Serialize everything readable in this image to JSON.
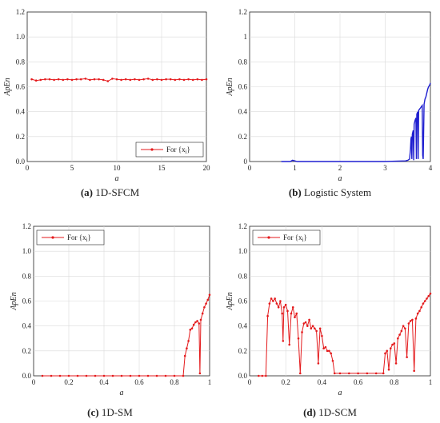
{
  "chart_data": [
    {
      "id": "a",
      "type": "line",
      "caption_label": "(a)",
      "caption_text": "1D-SFCM",
      "xlabel": "a",
      "ylabel": "ApEn",
      "xlim": [
        0,
        20
      ],
      "ylim": [
        0,
        1.2
      ],
      "xticks": [
        "0",
        "5",
        "10",
        "15",
        "20"
      ],
      "yticks": [
        "0.0",
        "0.2",
        "0.4",
        "0.6",
        "0.8",
        "1.0",
        "1.2"
      ],
      "grid": true,
      "color": "#e41a1c",
      "markers": true,
      "legend": {
        "position": "bottom-right",
        "label": "For {x_i}"
      },
      "series": [
        {
          "x": [
            0.5,
            1,
            1.5,
            2,
            2.5,
            3,
            3.5,
            4,
            4.5,
            5,
            5.5,
            6,
            6.5,
            7,
            7.5,
            8,
            8.5,
            9,
            9.5,
            10,
            10.5,
            11,
            11.5,
            12,
            12.5,
            13,
            13.5,
            14,
            14.5,
            15,
            15.5,
            16,
            16.5,
            17,
            17.5,
            18,
            18.5,
            19,
            19.5,
            20
          ],
          "y": [
            0.66,
            0.65,
            0.655,
            0.66,
            0.66,
            0.655,
            0.66,
            0.655,
            0.66,
            0.655,
            0.66,
            0.66,
            0.665,
            0.655,
            0.66,
            0.66,
            0.655,
            0.645,
            0.665,
            0.66,
            0.655,
            0.66,
            0.655,
            0.66,
            0.655,
            0.66,
            0.665,
            0.655,
            0.66,
            0.655,
            0.66,
            0.66,
            0.655,
            0.66,
            0.655,
            0.66,
            0.655,
            0.66,
            0.655,
            0.66
          ]
        }
      ]
    },
    {
      "id": "b",
      "type": "line",
      "caption_label": "(b)",
      "caption_text": "Logistic System",
      "xlabel": "a",
      "ylabel": "ApEn",
      "xlim": [
        0,
        4
      ],
      "ylim": [
        0,
        1.2
      ],
      "xticks": [
        "0",
        "1",
        "2",
        "3",
        "4"
      ],
      "yticks": [
        "0",
        "0.2",
        "0.4",
        "0.6",
        "0.8",
        "1",
        "1.2"
      ],
      "grid": true,
      "color": "#1f1fd0",
      "markers": false,
      "series": [
        {
          "x": [
            0.7,
            0.9,
            0.95,
            1.0,
            1.05,
            1.3,
            2.0,
            3.0,
            3.45,
            3.5,
            3.54,
            3.56,
            3.57,
            3.58,
            3.59,
            3.6,
            3.62,
            3.63,
            3.64,
            3.66,
            3.68,
            3.69,
            3.7,
            3.72,
            3.73,
            3.74,
            3.76,
            3.78,
            3.8,
            3.82,
            3.83,
            3.84,
            3.86,
            3.88,
            3.9,
            3.92,
            3.94,
            3.96,
            3.98,
            4.0
          ],
          "y": [
            0,
            0,
            0.01,
            0.005,
            0,
            0,
            0,
            0,
            0.005,
            0.01,
            0.02,
            0.1,
            0.18,
            0.2,
            0.02,
            0.22,
            0.25,
            0.01,
            0.3,
            0.33,
            0.35,
            0.02,
            0.38,
            0.4,
            0.02,
            0.41,
            0.42,
            0.43,
            0.44,
            0.45,
            0.05,
            0.02,
            0.46,
            0.5,
            0.52,
            0.55,
            0.58,
            0.6,
            0.61,
            0.63
          ]
        }
      ]
    },
    {
      "id": "c",
      "type": "line",
      "caption_label": "(c)",
      "caption_text": "1D-SM",
      "xlabel": "a",
      "ylabel": "ApEn",
      "xlim": [
        0,
        1
      ],
      "ylim": [
        0,
        1.2
      ],
      "xticks": [
        "0",
        "0.2",
        "0.4",
        "0.6",
        "0.8",
        "1"
      ],
      "yticks": [
        "0.0",
        "0.2",
        "0.4",
        "0.6",
        "0.8",
        "1.0",
        "1.2"
      ],
      "grid": true,
      "color": "#e41a1c",
      "markers": true,
      "legend": {
        "position": "top-left",
        "label": "For {x_i}"
      },
      "series": [
        {
          "x": [
            0.05,
            0.1,
            0.15,
            0.2,
            0.25,
            0.3,
            0.35,
            0.4,
            0.45,
            0.5,
            0.55,
            0.6,
            0.65,
            0.7,
            0.75,
            0.8,
            0.85,
            0.86,
            0.87,
            0.88,
            0.89,
            0.9,
            0.91,
            0.92,
            0.93,
            0.94,
            0.945,
            0.95,
            0.96,
            0.97,
            0.98,
            0.99,
            1.0
          ],
          "y": [
            0,
            0,
            0,
            0,
            0,
            0,
            0,
            0,
            0,
            0,
            0,
            0,
            0,
            0,
            0,
            0,
            0,
            0.16,
            0.22,
            0.28,
            0.37,
            0.38,
            0.41,
            0.43,
            0.44,
            0.42,
            0.02,
            0.45,
            0.5,
            0.55,
            0.58,
            0.61,
            0.65
          ]
        }
      ]
    },
    {
      "id": "d",
      "type": "line",
      "caption_label": "(d)",
      "caption_text": "1D-SCM",
      "xlabel": "a",
      "ylabel": "ApEn",
      "xlim": [
        0,
        1
      ],
      "ylim": [
        0,
        1.2
      ],
      "xticks": [
        "0",
        "0.2",
        "0.4",
        "0.6",
        "0.8",
        "1"
      ],
      "yticks": [
        "0.0",
        "0.2",
        "0.4",
        "0.6",
        "0.8",
        "1.0",
        "1.2"
      ],
      "grid": true,
      "color": "#e41a1c",
      "markers": true,
      "legend": {
        "position": "top-left",
        "label": "For {x_i}"
      },
      "series": [
        {
          "x": [
            0.05,
            0.07,
            0.09,
            0.1,
            0.11,
            0.12,
            0.13,
            0.14,
            0.15,
            0.16,
            0.17,
            0.18,
            0.185,
            0.19,
            0.2,
            0.21,
            0.22,
            0.23,
            0.24,
            0.25,
            0.26,
            0.27,
            0.28,
            0.29,
            0.3,
            0.31,
            0.32,
            0.33,
            0.34,
            0.35,
            0.36,
            0.37,
            0.38,
            0.39,
            0.4,
            0.41,
            0.42,
            0.43,
            0.44,
            0.45,
            0.46,
            0.47,
            0.5,
            0.55,
            0.6,
            0.65,
            0.7,
            0.74,
            0.75,
            0.76,
            0.77,
            0.78,
            0.79,
            0.8,
            0.81,
            0.82,
            0.83,
            0.84,
            0.85,
            0.86,
            0.87,
            0.88,
            0.89,
            0.9,
            0.91,
            0.92,
            0.93,
            0.94,
            0.95,
            0.96,
            0.97,
            0.98,
            0.99,
            1.0
          ],
          "y": [
            0,
            0,
            0,
            0.48,
            0.58,
            0.62,
            0.6,
            0.62,
            0.58,
            0.55,
            0.6,
            0.5,
            0.28,
            0.55,
            0.57,
            0.52,
            0.25,
            0.5,
            0.55,
            0.47,
            0.5,
            0.3,
            0.02,
            0.35,
            0.42,
            0.43,
            0.4,
            0.45,
            0.38,
            0.4,
            0.38,
            0.36,
            0.1,
            0.38,
            0.32,
            0.22,
            0.23,
            0.2,
            0.2,
            0.18,
            0.12,
            0.02,
            0.02,
            0.02,
            0.02,
            0.02,
            0.02,
            0.02,
            0.18,
            0.2,
            0.05,
            0.22,
            0.25,
            0.26,
            0.1,
            0.3,
            0.33,
            0.36,
            0.4,
            0.38,
            0.15,
            0.42,
            0.44,
            0.45,
            0.04,
            0.46,
            0.5,
            0.52,
            0.55,
            0.58,
            0.6,
            0.62,
            0.64,
            0.66
          ]
        }
      ]
    }
  ]
}
